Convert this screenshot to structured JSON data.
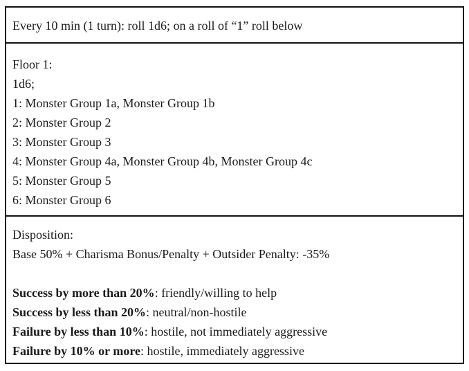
{
  "header": {
    "text": "Every 10 min (1 turn): roll 1d6; on a roll of “1” roll below"
  },
  "floor": {
    "title": "Floor 1:",
    "dice": "1d6;",
    "entries": [
      "1: Monster Group 1a, Monster Group 1b",
      "2: Monster Group 2",
      "3: Monster Group 3",
      "4: Monster Group 4a, Monster Group 4b, Monster Group 4c",
      "5: Monster Group 5",
      "6: Monster Group 6"
    ]
  },
  "disposition": {
    "title": "Disposition:",
    "formula": "Base 50% + Charisma Bonus/Penalty + Outsider Penalty: -35%",
    "outcomes": [
      {
        "label": "Success by more than 20%",
        "result": ": friendly/willing to help"
      },
      {
        "label": "Success by less than 20%",
        "result": ": neutral/non-hostile"
      },
      {
        "label": "Failure by less than 10%",
        "result": ": hostile, not immediately aggressive"
      },
      {
        "label": "Failure by 10% or more",
        "result": ": hostile, immediately aggressive"
      }
    ]
  }
}
